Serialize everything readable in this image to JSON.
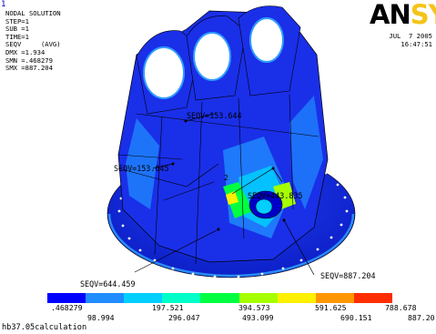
{
  "window": {
    "frame_index": "1",
    "logo_left": "AN",
    "logo_right": "SY"
  },
  "info_block": {
    "title": "NODAL SOLUTION",
    "lines": [
      "STEP=1",
      "SUB =1",
      "TIME=1",
      "SEQV     (AVG)",
      "DMX =1.934",
      "SMN =.468279",
      "SMX =887.204"
    ]
  },
  "date_block": {
    "date": "JUL  7 2005",
    "time": "16:47:51"
  },
  "callouts": {
    "top_center": "SEQV=153.644",
    "left": "SEQV=153.645",
    "center": "SEQV=443.835",
    "bottom_left": "SEQV=644.459",
    "bottom_right": "SEQV=887.204",
    "node_label": "2"
  },
  "legend": {
    "colors": [
      "#0000ff",
      "#1f8cff",
      "#00cfff",
      "#00ffc8",
      "#00ff40",
      "#a6ff00",
      "#fff000",
      "#ff9600",
      "#ff2d00"
    ],
    "row1": [
      ".468279",
      "197.521",
      "394.573",
      "591.625",
      "788.678"
    ],
    "row2": [
      "98.994",
      "296.047",
      "493.099",
      "690.151",
      "887.20"
    ]
  },
  "caption": "hb37.05calculation",
  "accent": {
    "model_blue": "#1a2fe8",
    "model_dark": "#0a1a9a",
    "model_light": "#2fa0ff"
  }
}
